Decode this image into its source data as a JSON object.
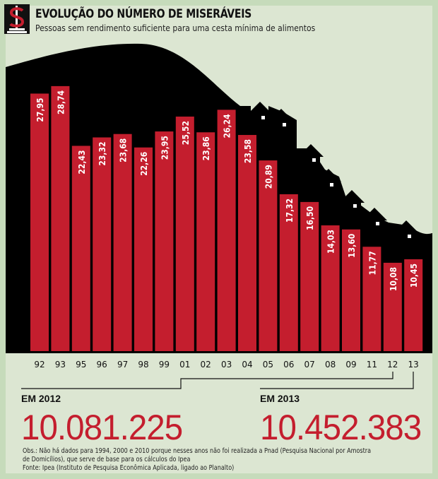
{
  "title": "EVOLUÇÃO DO NÚMERO DE MISERÁVEIS",
  "subtitle": "Pessoas sem rendimento suficiente para uma cesta mínima de alimentos",
  "logo_icon": "dollar-sign-pedestal-icon",
  "colors": {
    "bar": "#c41e2e",
    "background": "#dce6d2",
    "hill": "#000000",
    "highlight": "#c41e2e"
  },
  "chart_data": {
    "type": "bar",
    "categories": [
      "92",
      "93",
      "95",
      "96",
      "97",
      "98",
      "99",
      "01",
      "02",
      "03",
      "04",
      "05",
      "06",
      "07",
      "08",
      "09",
      "11",
      "12",
      "13"
    ],
    "values": [
      27.95,
      28.74,
      22.43,
      23.32,
      23.68,
      22.26,
      23.95,
      25.52,
      23.86,
      26.24,
      23.58,
      20.89,
      17.32,
      16.5,
      14.03,
      13.6,
      11.77,
      10.08,
      10.45
    ],
    "labels": [
      "27,95",
      "28,74",
      "22,43",
      "23,32",
      "23,68",
      "22,26",
      "23,95",
      "25,52",
      "23,86",
      "26,24",
      "23,58",
      "20,89",
      "17,32",
      "16,50",
      "14,03",
      "13,60",
      "11,77",
      "10,08",
      "10,45"
    ],
    "title": "EVOLUÇÃO DO NÚMERO DE MISERÁVEIS",
    "xlabel": "",
    "ylabel": "",
    "grid": false,
    "legend": "none"
  },
  "callouts": [
    {
      "label": "EM 2012",
      "value": "10.081.225"
    },
    {
      "label": "EM 2013",
      "value": "10.452.383"
    }
  ],
  "notes": [
    "Obs.: Não há dados para 1994, 2000 e 2010 porque nesses anos não foi realizada a Pnad (Pesquisa Nacional por Amostra",
    "de Domicílios), que serve de base para os cálculos do Ipea",
    "Fonte: Ipea (Instituto de Pesquisa Econômica Aplicada, ligado ao Planalto)"
  ]
}
